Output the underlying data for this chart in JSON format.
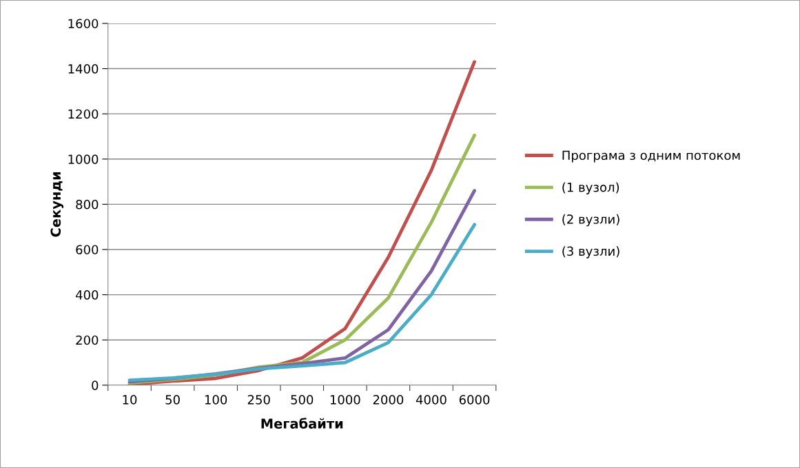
{
  "chart_data": {
    "type": "line",
    "xlabel": "Мегабайти",
    "ylabel": "Секунди",
    "categories": [
      "10",
      "50",
      "100",
      "250",
      "500",
      "1000",
      "2000",
      "4000",
      "6000"
    ],
    "series": [
      {
        "name": "Програма з одним потоком",
        "color": "#c0504d",
        "values": [
          3,
          18,
          30,
          65,
          120,
          250,
          565,
          950,
          1430
        ]
      },
      {
        "name": "(1 вузол)",
        "color": "#9bbb59",
        "values": [
          10,
          25,
          45,
          80,
          100,
          200,
          385,
          720,
          1105
        ]
      },
      {
        "name": "(2 вузли)",
        "color": "#8064a2",
        "values": [
          15,
          30,
          50,
          75,
          95,
          120,
          245,
          505,
          860
        ]
      },
      {
        "name": "(3 вузли)",
        "color": "#4bacc6",
        "values": [
          22,
          32,
          48,
          72,
          85,
          100,
          188,
          400,
          710
        ]
      }
    ],
    "ylim": [
      0,
      1600
    ],
    "yticks": [
      0,
      200,
      400,
      600,
      800,
      1000,
      1200,
      1400,
      1600
    ],
    "grid": "y",
    "legend": "right",
    "marker": "none",
    "line_style": "solid"
  }
}
